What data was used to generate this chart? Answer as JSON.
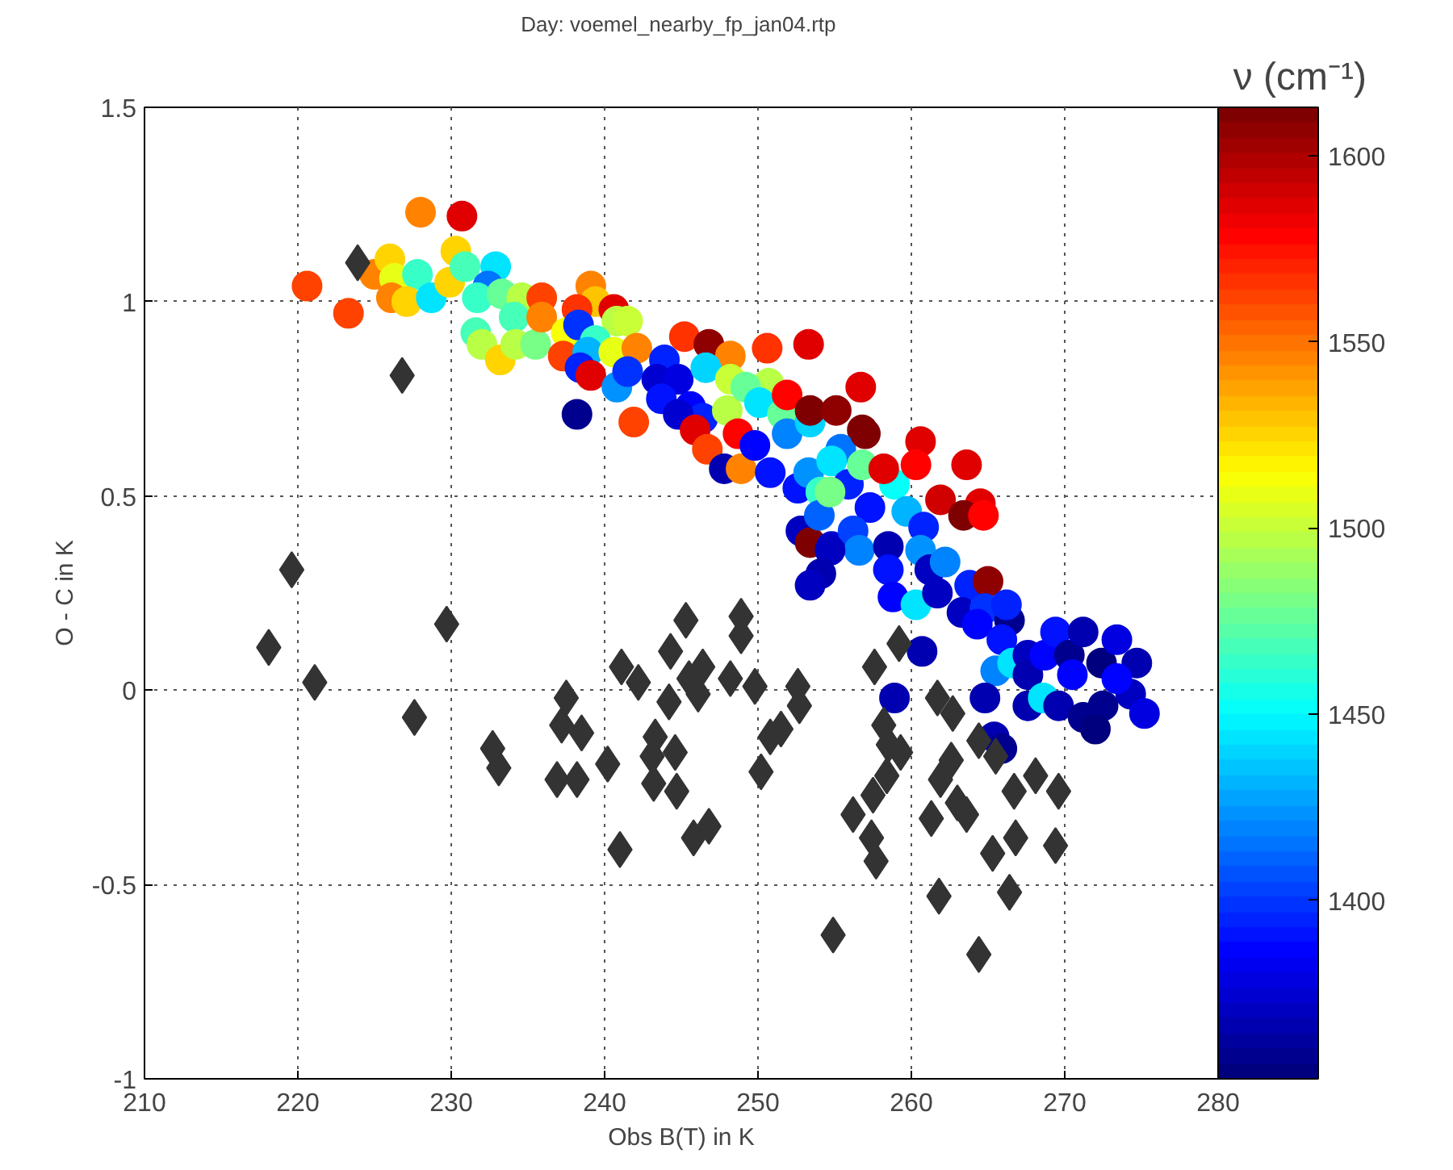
{
  "chart_data": {
    "type": "scatter",
    "title": "Day:  voemel_nearby_fp_jan04.rtp",
    "xlabel": "Obs B(T) in K",
    "ylabel": "O - C in K",
    "clabel": "ν (cm⁻¹)",
    "xlim": [
      210,
      280
    ],
    "xticks": [
      210,
      220,
      230,
      240,
      250,
      260,
      270,
      280
    ],
    "ylim": [
      -1,
      1.5
    ],
    "yticks": [
      -1,
      -0.5,
      0,
      0.5,
      1,
      1.5
    ],
    "clim": [
      1352,
      1613
    ],
    "cticks": [
      1400,
      1450,
      1500,
      1550,
      1600
    ],
    "grid": true,
    "series": [
      {
        "type": "scatter",
        "marker": "circle",
        "colors": [
          "#ff4200",
          "#ff4200",
          "#ff8300",
          "#e00000",
          "#ff8300",
          "#ffd400",
          "#e8ff16",
          "#36ffc8",
          "#ff8300",
          "#ffd400",
          "#00e4ff",
          "#ffd400",
          "#ffd400",
          "#46ffb8",
          "#00e4ff",
          "#0073ff",
          "#36ffc8",
          "#67ff97",
          "#b8ff46",
          "#46ffb8",
          "#b8ff46",
          "#ffd400",
          "#46ffb8",
          "#b8ff46",
          "#77ff87",
          "#ff4200",
          "#ff8300",
          "#ff8300",
          "#ffc400",
          "#ff3200",
          "#e00000",
          "#b8ff46",
          "#c8ff36",
          "#f8ff06",
          "#0032ff",
          "#36ffc8",
          "#ff4200",
          "#00b4ff",
          "#e8ff16",
          "#ff8300",
          "#0022ff",
          "#e00000",
          "#0093ff",
          "#0032ff",
          "#00008f",
          "#ff4200",
          "#0022ff",
          "#0000d0",
          "#0000e0",
          "#0012ff",
          "#ff3200",
          "#8f0000",
          "#ff8300",
          "#00d4ff",
          "#0002ff",
          "#0022ff",
          "#0000d0",
          "#b8ff46",
          "#c8ff36",
          "#e00000",
          "#ff4200",
          "#0000b0",
          "#ff8300",
          "#ff0200",
          "#ff3200",
          "#e00000",
          "#b8ff46",
          "#67ff97",
          "#00e4ff",
          "#67ff97",
          "#ff0200",
          "#0002ff",
          "#0012ff",
          "#0083ff",
          "#00d4ff",
          "#7f0000",
          "#e00000",
          "#8f0000",
          "#7f0000",
          "#0012ff",
          "#0093ff",
          "#36ffc8",
          "#0073ff",
          "#00e4ff",
          "#0022ff",
          "#0012ff",
          "#67ff97",
          "#0000c0",
          "#7f0000",
          "#0000d0",
          "#0063ff",
          "#0042ff",
          "#0083ff",
          "#0000b0",
          "#06fff8",
          "#e00000",
          "#e00000",
          "#e00000",
          "#ff0200",
          "#7f0000",
          "#d00000",
          "#e00000",
          "#7f0000",
          "#ff0200",
          "#77ff87",
          "#00b4ff",
          "#0022ff",
          "#0000c0",
          "#0000b0",
          "#0012ff",
          "#0093ff",
          "#0000c0",
          "#0083ff",
          "#0002ff",
          "#00e4ff",
          "#0000c0",
          "#0022ff",
          "#8f0000",
          "#0000c0",
          "#0032ff",
          "#0002ff",
          "#00008f",
          "#0022ff",
          "#0012ff",
          "#0083ff",
          "#00e4ff",
          "#0000c0",
          "#0000b0",
          "#0002ff",
          "#0012ff",
          "#0000b0",
          "#00e4ff",
          "#0000b0",
          "#00008f",
          "#0000b0",
          "#0002ff",
          "#00007f",
          "#0000e0",
          "#0000b0",
          "#0000c0",
          "#0000e0",
          "#00008f",
          "#00008f",
          "#00007f",
          "#0002ff",
          "#0000b0",
          "#0000b0",
          "#0000b0",
          "#0000b0",
          "#00008f",
          "#0000c0"
        ],
        "x": [
          220.6,
          223.3,
          228.0,
          230.7,
          225.0,
          226.0,
          226.3,
          227.8,
          226.1,
          227.1,
          228.7,
          229.9,
          230.3,
          230.9,
          232.9,
          232.4,
          231.7,
          233.3,
          234.6,
          231.6,
          232.0,
          233.2,
          234.1,
          234.2,
          235.5,
          235.9,
          239.1,
          235.9,
          239.4,
          238.2,
          240.6,
          240.8,
          241.5,
          237.5,
          238.3,
          239.4,
          237.3,
          238.9,
          240.6,
          242.1,
          238.4,
          239.1,
          240.8,
          241.5,
          238.2,
          241.9,
          243.9,
          243.4,
          244.8,
          243.7,
          245.2,
          246.8,
          248.2,
          246.6,
          245.6,
          246.4,
          244.8,
          248.0,
          248.2,
          245.9,
          246.7,
          247.8,
          248.9,
          248.7,
          250.6,
          253.3,
          250.7,
          249.2,
          250.1,
          251.6,
          251.9,
          249.8,
          250.8,
          251.9,
          253.4,
          253.4,
          256.7,
          255.1,
          256.8,
          252.6,
          253.3,
          254.1,
          255.4,
          254.8,
          255.9,
          257.3,
          256.8,
          252.8,
          253.4,
          254.8,
          254.0,
          256.2,
          256.6,
          258.5,
          258.9,
          258.2,
          260.6,
          263.6,
          260.3,
          257.0,
          261.9,
          264.5,
          263.4,
          264.7,
          254.7,
          259.7,
          260.8,
          254.7,
          254.1,
          258.5,
          260.6,
          261.2,
          262.2,
          258.8,
          260.3,
          261.7,
          263.8,
          265.0,
          263.3,
          264.8,
          264.3,
          266.4,
          266.2,
          265.9,
          265.5,
          266.6,
          267.6,
          267.6,
          268.7,
          269.4,
          267.6,
          268.6,
          269.6,
          270.3,
          271.2,
          270.5,
          272.4,
          273.4,
          274.7,
          274.3,
          275.2,
          272.5,
          271.2,
          272.0,
          273.4,
          264.8,
          258.9,
          260.7,
          265.4,
          265.9,
          253.4
        ],
        "values": [
          1.04,
          0.97,
          1.23,
          1.22,
          1.07,
          1.11,
          1.06,
          1.07,
          1.01,
          1.0,
          1.01,
          1.05,
          1.13,
          1.09,
          1.09,
          1.04,
          1.01,
          1.02,
          1.01,
          0.92,
          0.89,
          0.85,
          0.96,
          0.89,
          0.89,
          1.01,
          1.04,
          0.96,
          1.0,
          0.98,
          0.98,
          0.95,
          0.95,
          0.92,
          0.94,
          0.9,
          0.86,
          0.87,
          0.87,
          0.88,
          0.83,
          0.81,
          0.78,
          0.82,
          0.71,
          0.69,
          0.85,
          0.8,
          0.8,
          0.75,
          0.91,
          0.89,
          0.86,
          0.83,
          0.73,
          0.7,
          0.71,
          0.72,
          0.8,
          0.67,
          0.62,
          0.57,
          0.57,
          0.66,
          0.88,
          0.89,
          0.79,
          0.78,
          0.74,
          0.71,
          0.76,
          0.63,
          0.56,
          0.66,
          0.69,
          0.72,
          0.78,
          0.72,
          0.67,
          0.52,
          0.56,
          0.51,
          0.62,
          0.59,
          0.53,
          0.47,
          0.58,
          0.41,
          0.38,
          0.37,
          0.45,
          0.41,
          0.36,
          0.37,
          0.53,
          0.57,
          0.64,
          0.58,
          0.58,
          0.66,
          0.49,
          0.48,
          0.45,
          0.45,
          0.51,
          0.46,
          0.42,
          0.36,
          0.3,
          0.31,
          0.36,
          0.31,
          0.33,
          0.24,
          0.22,
          0.25,
          0.27,
          0.28,
          0.2,
          0.21,
          0.17,
          0.18,
          0.22,
          0.13,
          0.05,
          0.07,
          0.09,
          0.04,
          0.09,
          0.15,
          -0.04,
          -0.02,
          -0.04,
          0.09,
          0.15,
          0.04,
          0.07,
          0.13,
          0.07,
          -0.01,
          -0.06,
          -0.04,
          -0.07,
          -0.1,
          0.03,
          -0.02,
          -0.02,
          0.1,
          -0.12,
          -0.15,
          0.27
        ],
        "cvalues": [
          1560,
          1560,
          1545,
          1585,
          1545,
          1525,
          1510,
          1465,
          1545,
          1525,
          1445,
          1525,
          1525,
          1470,
          1445,
          1415,
          1465,
          1475,
          1495,
          1470,
          1495,
          1525,
          1470,
          1495,
          1480,
          1560,
          1545,
          1545,
          1530,
          1565,
          1585,
          1495,
          1500,
          1515,
          1400,
          1465,
          1560,
          1430,
          1510,
          1545,
          1395,
          1585,
          1425,
          1400,
          1360,
          1560,
          1395,
          1375,
          1380,
          1390,
          1565,
          1605,
          1545,
          1440,
          1385,
          1395,
          1375,
          1495,
          1500,
          1585,
          1560,
          1365,
          1545,
          1580,
          1565,
          1585,
          1495,
          1475,
          1445,
          1475,
          1580,
          1385,
          1390,
          1420,
          1440,
          1610,
          1585,
          1605,
          1610,
          1390,
          1425,
          1465,
          1415,
          1445,
          1395,
          1390,
          1475,
          1370,
          1610,
          1375,
          1410,
          1405,
          1420,
          1365,
          1450,
          1585,
          1585,
          1585,
          1580,
          1610,
          1590,
          1585,
          1610,
          1580,
          1480,
          1430,
          1395,
          1370,
          1365,
          1390,
          1425,
          1370,
          1420,
          1385,
          1445,
          1370,
          1395,
          1605,
          1370,
          1400,
          1385,
          1360,
          1395,
          1390,
          1420,
          1445,
          1370,
          1365,
          1385,
          1390,
          1365,
          1445,
          1365,
          1360,
          1365,
          1385,
          1355,
          1380,
          1365,
          1370,
          1380,
          1360,
          1360,
          1355,
          1385,
          1365,
          1365,
          1365,
          1365,
          1360,
          1370
        ]
      },
      {
        "type": "scatter",
        "marker": "diamond",
        "color": "#333333",
        "x": [
          219.6,
          218.1,
          221.1,
          229.7,
          227.6,
          232.7,
          233.1,
          237.5,
          237.2,
          238.5,
          236.9,
          238.2,
          240.2,
          241.1,
          242.2,
          244.3,
          244.2,
          243.3,
          243.1,
          244.6,
          243.2,
          244.7,
          241.0,
          245.3,
          246.4,
          248.9,
          248.9,
          248.2,
          245.5,
          246.1,
          249.8,
          246.8,
          245.8,
          250.2,
          250.8,
          251.5,
          252.6,
          252.7,
          254.9,
          256.2,
          257.5,
          258.4,
          258.2,
          258.5,
          259.3,
          257.4,
          257.7,
          257.6,
          259.2,
          261.7,
          262.7,
          262.6,
          261.9,
          261.3,
          263.0,
          263.6,
          265.3,
          261.8,
          264.4,
          264.4,
          265.5,
          266.7,
          268.1,
          269.6,
          266.8,
          269.4,
          266.4,
          223.9,
          226.8
        ],
        "values": [
          0.31,
          0.11,
          0.02,
          0.17,
          -0.07,
          -0.15,
          -0.2,
          -0.02,
          -0.09,
          -0.11,
          -0.23,
          -0.23,
          -0.19,
          0.06,
          0.02,
          0.1,
          -0.03,
          -0.12,
          -0.17,
          -0.16,
          -0.24,
          -0.26,
          -0.41,
          0.18,
          0.06,
          0.19,
          0.14,
          0.03,
          0.03,
          -0.01,
          0.01,
          -0.35,
          -0.38,
          -0.21,
          -0.12,
          -0.1,
          0.01,
          -0.04,
          -0.63,
          -0.32,
          -0.27,
          -0.22,
          -0.09,
          -0.14,
          -0.16,
          -0.38,
          -0.44,
          0.06,
          0.12,
          -0.02,
          -0.06,
          -0.18,
          -0.23,
          -0.33,
          -0.29,
          -0.32,
          -0.42,
          -0.53,
          -0.68,
          -0.13,
          -0.17,
          -0.26,
          -0.22,
          -0.26,
          -0.38,
          -0.4,
          -0.52,
          1.1,
          0.81
        ]
      }
    ]
  }
}
